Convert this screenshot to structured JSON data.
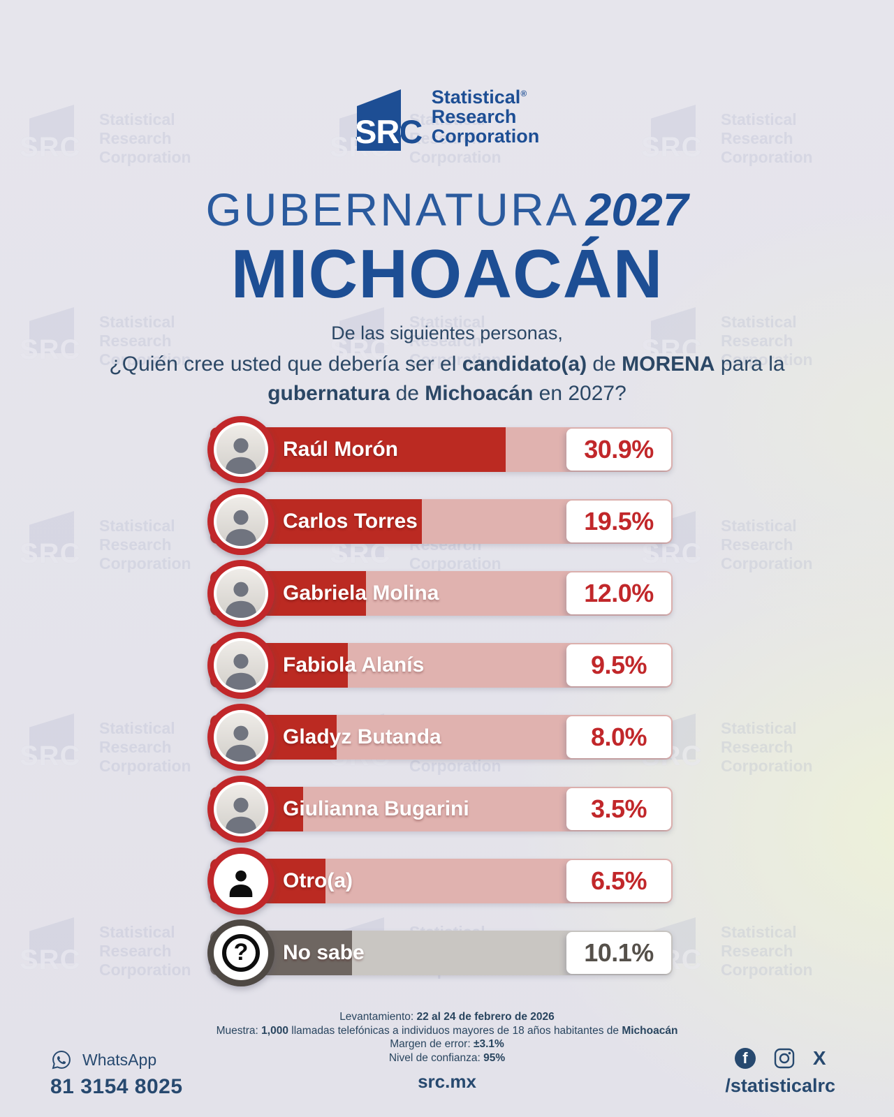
{
  "branding": {
    "logo_text": "SRC",
    "registered_mark": "®",
    "logo_lines": [
      "Statistical",
      "Research",
      "Corporation"
    ],
    "watermark_lines": [
      "Statistical",
      "Research",
      "Corporation"
    ]
  },
  "header": {
    "title_light": "GUBERNATURA",
    "title_year": "2027",
    "title_state": "MICHOACÁN"
  },
  "question": {
    "line1": "De las siguientes personas,",
    "line2": [
      {
        "t": "¿Quién cree usted que debería ser el ",
        "b": false
      },
      {
        "t": "candidato(a)",
        "b": true
      },
      {
        "t": " de ",
        "b": false
      },
      {
        "t": "MORENA",
        "b": true
      },
      {
        "t": " para la",
        "b": false
      }
    ],
    "line3": [
      {
        "t": "gubernatura",
        "b": true
      },
      {
        "t": " de ",
        "b": false
      },
      {
        "t": "Michoacán",
        "b": true
      },
      {
        "t": " en 2027?",
        "b": false
      }
    ]
  },
  "chart_data": {
    "type": "bar",
    "orientation": "horizontal",
    "unit": "%",
    "title": "GUBERNATURA 2027 MICHOACÁN",
    "question": "De las siguientes personas, ¿Quién cree usted que debería ser el candidato(a) de MORENA para la gubernatura de Michoacán en 2027?",
    "categories": [
      "Raúl Morón",
      "Carlos Torres",
      "Gabriela Molina",
      "Fabiola Alanís",
      "Gladyz Butanda",
      "Giulianna Bugarini",
      "Otro(a)",
      "No sabe"
    ],
    "values": [
      30.9,
      19.5,
      12.0,
      9.5,
      8.0,
      3.5,
      6.5,
      10.1
    ],
    "value_labels": [
      "30.9%",
      "19.5%",
      "12.0%",
      "9.5%",
      "8.0%",
      "3.5%",
      "6.5%",
      "10.1%"
    ],
    "bar_color": "#bb2a22",
    "bar_color_no_sabe": "#6e6661",
    "track_color": "#e0b2af",
    "track_color_no_sabe": "#c9c6c2",
    "value_label_color": "#c1272a"
  },
  "candidates": [
    {
      "name": "Raúl Morón",
      "value": 30.9,
      "label": "30.9%",
      "theme": "red",
      "icon": "photo"
    },
    {
      "name": "Carlos Torres",
      "value": 19.5,
      "label": "19.5%",
      "theme": "red",
      "icon": "photo"
    },
    {
      "name": "Gabriela Molina",
      "value": 12.0,
      "label": "12.0%",
      "theme": "red",
      "icon": "photo"
    },
    {
      "name": "Fabiola Alanís",
      "value": 9.5,
      "label": "9.5%",
      "theme": "red",
      "icon": "photo"
    },
    {
      "name": "Gladyz Butanda",
      "value": 8.0,
      "label": "8.0%",
      "theme": "red",
      "icon": "photo"
    },
    {
      "name": "Giulianna Bugarini",
      "value": 3.5,
      "label": "3.5%",
      "theme": "red",
      "icon": "photo"
    },
    {
      "name": "Otro(a)",
      "value": 6.5,
      "label": "6.5%",
      "theme": "red",
      "icon": "person"
    },
    {
      "name": "No sabe",
      "value": 10.1,
      "label": "10.1%",
      "theme": "gray",
      "icon": "question"
    }
  ],
  "methodology": {
    "lines": [
      [
        {
          "t": "Levantamiento: ",
          "b": false
        },
        {
          "t": "22 al 24 de febrero de 2026",
          "b": true
        }
      ],
      [
        {
          "t": "Muestra: ",
          "b": false
        },
        {
          "t": "1,000",
          "b": true
        },
        {
          "t": " llamadas telefónicas a individuos mayores de 18 años habitantes de ",
          "b": false
        },
        {
          "t": "Michoacán",
          "b": true
        }
      ],
      [
        {
          "t": "Margen de error: ",
          "b": false
        },
        {
          "t": "±3.1%",
          "b": true
        }
      ],
      [
        {
          "t": "Nivel de confianza: ",
          "b": false
        },
        {
          "t": "95%",
          "b": true
        }
      ]
    ]
  },
  "footer": {
    "whatsapp_label": "WhatsApp",
    "phone": "81 3154 8025",
    "website": "src.mx",
    "social_handle": "/statisticalrc",
    "facebook_letter": "f",
    "x_letter": "X"
  },
  "colors": {
    "navy": "#1d4e94",
    "question_text": "#2b4765",
    "red": "#c1272a",
    "gray_dark": "#6e6661",
    "background": "#e5e4eb",
    "background_tint": "#eef2d8"
  }
}
